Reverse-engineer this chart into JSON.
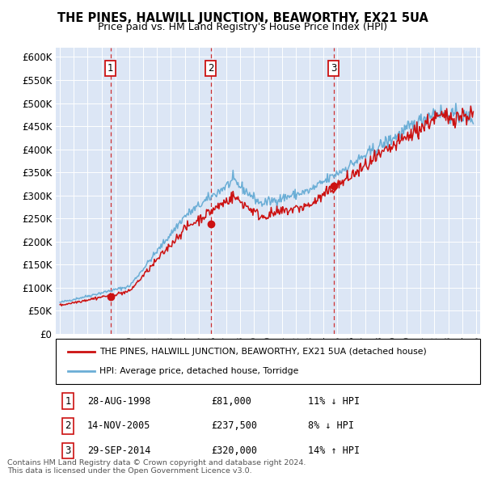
{
  "title": "THE PINES, HALWILL JUNCTION, BEAWORTHY, EX21 5UA",
  "subtitle": "Price paid vs. HM Land Registry's House Price Index (HPI)",
  "legend_line1": "THE PINES, HALWILL JUNCTION, BEAWORTHY, EX21 5UA (detached house)",
  "legend_line2": "HPI: Average price, detached house, Torridge",
  "transactions": [
    {
      "label": "1",
      "date_str": "28-AUG-1998",
      "date_x": 1998.65,
      "price": 81000,
      "note": "11% ↓ HPI"
    },
    {
      "label": "2",
      "date_str": "14-NOV-2005",
      "date_x": 2005.87,
      "price": 237500,
      "note": "8% ↓ HPI"
    },
    {
      "label": "3",
      "date_str": "29-SEP-2014",
      "date_x": 2014.74,
      "price": 320000,
      "note": "14% ↑ HPI"
    }
  ],
  "copyright_text": "Contains HM Land Registry data © Crown copyright and database right 2024.\nThis data is licensed under the Open Government Licence v3.0.",
  "hpi_color": "#6baed6",
  "price_color": "#cc1111",
  "background_color": "#dce6f5",
  "ylim": [
    0,
    620000
  ],
  "yticks": [
    0,
    50000,
    100000,
    150000,
    200000,
    250000,
    300000,
    350000,
    400000,
    450000,
    500000,
    550000,
    600000
  ],
  "xlim_start": 1994.7,
  "xlim_end": 2025.3
}
